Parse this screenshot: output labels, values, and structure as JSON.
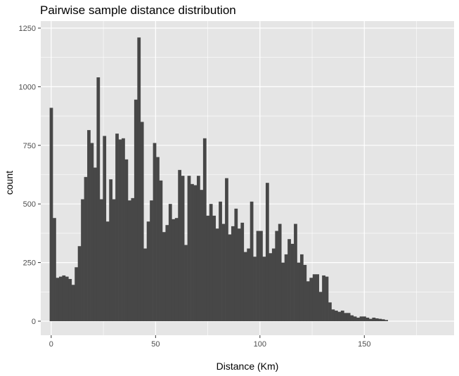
{
  "chart_data": {
    "type": "bar",
    "title": "Pairwise sample distance distribution",
    "xlabel": "Distance (Km)",
    "ylabel": "count",
    "xlim": [
      -5,
      193
    ],
    "ylim": [
      -60,
      1280
    ],
    "x_ticks": [
      0,
      50,
      100,
      150
    ],
    "y_ticks": [
      0,
      250,
      500,
      750,
      1000,
      1250
    ],
    "bin_start": -0.75,
    "bin_width": 1.5,
    "values": [
      910,
      440,
      185,
      190,
      195,
      190,
      180,
      155,
      230,
      320,
      520,
      615,
      815,
      760,
      655,
      1040,
      520,
      790,
      425,
      605,
      520,
      800,
      775,
      780,
      690,
      515,
      525,
      945,
      1210,
      850,
      310,
      425,
      515,
      760,
      700,
      600,
      380,
      410,
      500,
      435,
      440,
      645,
      620,
      325,
      620,
      585,
      580,
      620,
      560,
      780,
      450,
      500,
      450,
      395,
      510,
      415,
      610,
      370,
      405,
      480,
      395,
      420,
      295,
      310,
      510,
      275,
      385,
      385,
      275,
      590,
      290,
      310,
      385,
      415,
      250,
      285,
      350,
      330,
      415,
      250,
      285,
      240,
      170,
      185,
      200,
      200,
      125,
      195,
      190,
      80,
      50,
      45,
      40,
      45,
      35,
      35,
      25,
      20,
      15,
      20,
      20,
      15,
      10,
      15,
      12,
      10,
      8,
      5
    ],
    "colors": {
      "bar": "#474747",
      "panel": "#e5e5e5",
      "grid": "#ffffff"
    },
    "grid": true,
    "legend": "none"
  }
}
